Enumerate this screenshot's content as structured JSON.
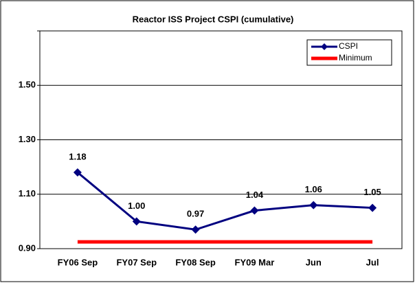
{
  "chart_data": {
    "type": "line",
    "title": "Reactor ISS Project CSPI (cumulative)",
    "categories": [
      "FY06 Sep",
      "FY07 Sep",
      "FY08 Sep",
      "FY09 Mar",
      "Jun",
      "Jul"
    ],
    "series": [
      {
        "name": "CSPI",
        "color": "#000080",
        "values": [
          1.18,
          1.0,
          0.97,
          1.04,
          1.06,
          1.05
        ],
        "value_labels": [
          "1.18",
          "1.00",
          "0.97",
          "1.04",
          "1.06",
          "1.05"
        ]
      },
      {
        "name": "Minimum",
        "color": "#ff0000",
        "values": [
          0.925,
          0.925,
          0.925,
          0.925,
          0.925,
          0.925
        ]
      }
    ],
    "ylim": [
      0.9,
      1.7
    ],
    "yticks": [
      {
        "value": 0.9,
        "label": "0.90"
      },
      {
        "value": 1.1,
        "label": "1.10"
      },
      {
        "value": 1.3,
        "label": "1.30"
      },
      {
        "value": 1.5,
        "label": "1.50"
      },
      1.7
    ],
    "grid": true,
    "legend": "upper right"
  }
}
